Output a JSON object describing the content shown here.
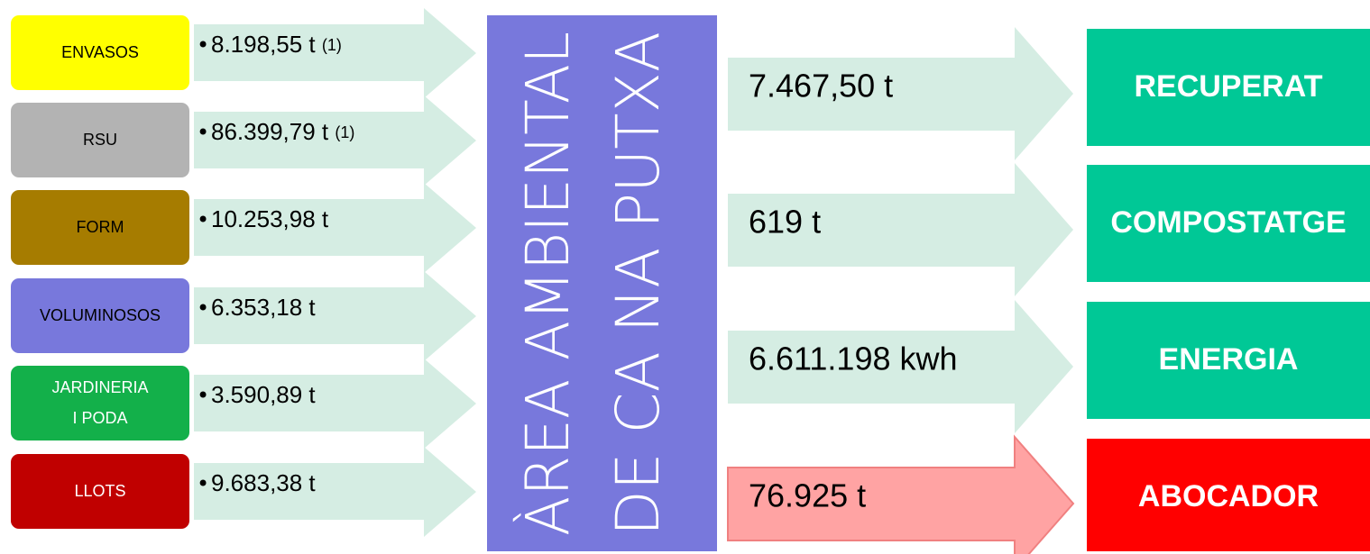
{
  "inputs": [
    {
      "label": [
        "ENVASOS"
      ],
      "amount": "8.198,55 t",
      "note": "(1)",
      "color": "#ffff00",
      "text_color": "#000000"
    },
    {
      "label": [
        "RSU"
      ],
      "amount": "86.399,79 t",
      "note": "(1)",
      "color": "#b3b3b3",
      "text_color": "#000000"
    },
    {
      "label": [
        "FORM"
      ],
      "amount": "10.253,98 t",
      "color": "#a67c00",
      "text_color": "#000000"
    },
    {
      "label": [
        "VOLUMINOSOS"
      ],
      "amount": "6.353,18 t",
      "color": "#7878dc",
      "text_color": "#000000"
    },
    {
      "label": [
        "JARDINERIA",
        "I PODA"
      ],
      "amount": "3.590,89 t",
      "color": "#13b04a",
      "text_color": "#ffffff"
    },
    {
      "label": [
        "LLOTS"
      ],
      "amount": "9.683,38 t",
      "color": "#c00000",
      "text_color": "#ffffff"
    }
  ],
  "center": {
    "lines": [
      "ÀREA AMBIENTAL",
      "DE CA NA PUTXA"
    ],
    "color": "#7878dc"
  },
  "outputs": [
    {
      "amount": "7.467,50 t",
      "label": "RECUPERAT",
      "color": "#00c896",
      "arrow_color": "#d5ede3"
    },
    {
      "amount": "619 t",
      "label": "COMPOSTATGE",
      "color": "#00c896",
      "arrow_color": "#d5ede3"
    },
    {
      "amount": "6.611.198 kwh",
      "label": "ENERGIA",
      "color": "#00c896",
      "arrow_color": "#d5ede3"
    },
    {
      "amount": "76.925 t",
      "label": "ABOCADOR",
      "color": "#ff0000",
      "arrow_color": "#ffa3a3"
    }
  ]
}
